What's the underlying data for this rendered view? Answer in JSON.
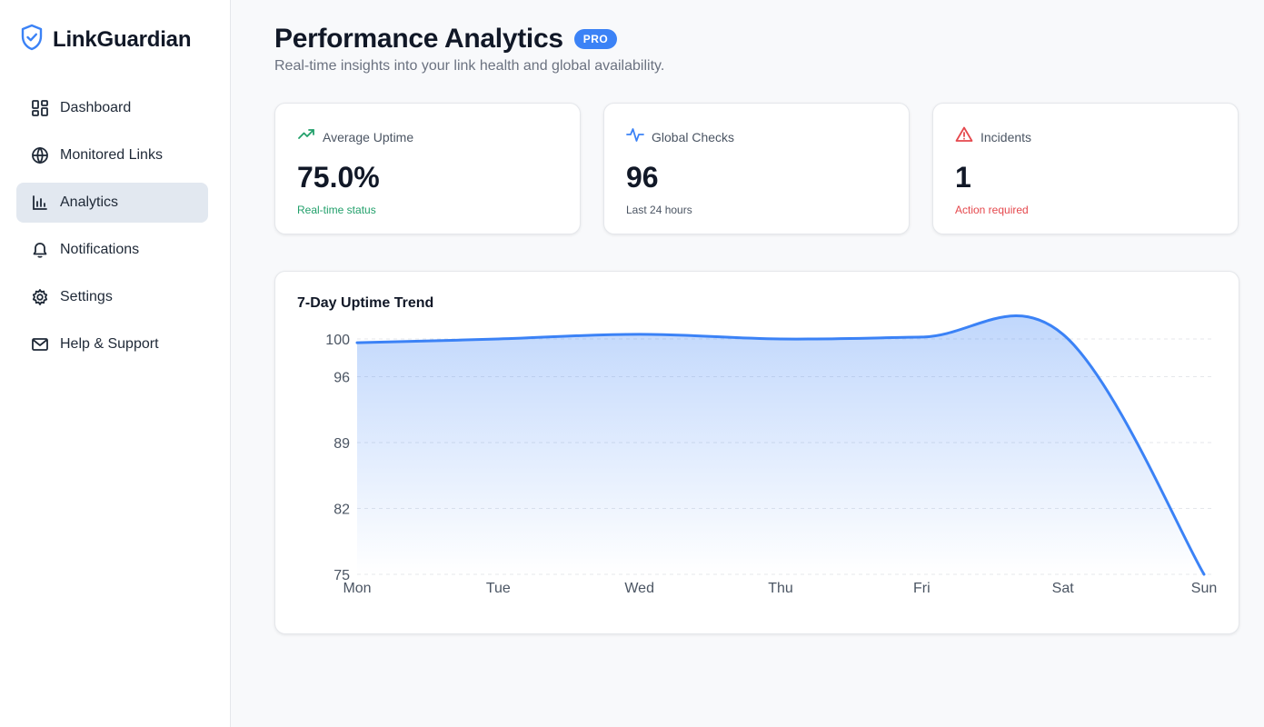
{
  "brand": {
    "name": "LinkGuardian",
    "accent": "#3b82f6"
  },
  "sidebar": {
    "items": [
      {
        "label": "Dashboard",
        "icon": "dashboard-icon",
        "active": false
      },
      {
        "label": "Monitored Links",
        "icon": "globe-icon",
        "active": false
      },
      {
        "label": "Analytics",
        "icon": "bar-chart-icon",
        "active": true
      },
      {
        "label": "Notifications",
        "icon": "bell-icon",
        "active": false
      },
      {
        "label": "Settings",
        "icon": "gear-icon",
        "active": false
      },
      {
        "label": "Help & Support",
        "icon": "mail-icon",
        "active": false
      }
    ]
  },
  "header": {
    "title": "Performance Analytics",
    "badge": "PRO",
    "subtitle": "Real-time insights into your link health and global availability."
  },
  "stats": [
    {
      "label": "Average Uptime",
      "value": "75.0%",
      "note": "Real-time status",
      "icon": "trending-up-icon",
      "color": "#22a06b"
    },
    {
      "label": "Global Checks",
      "value": "96",
      "note": "Last 24 hours",
      "icon": "activity-icon",
      "color": "#3b82f6"
    },
    {
      "label": "Incidents",
      "value": "1",
      "note": "Action required",
      "icon": "alert-triangle-icon",
      "color": "#e5484d"
    }
  ],
  "chart": {
    "title": "7-Day Uptime Trend"
  },
  "chart_data": {
    "type": "area",
    "title": "7-Day Uptime Trend",
    "categories": [
      "Mon",
      "Tue",
      "Wed",
      "Thu",
      "Fri",
      "Sat",
      "Sun"
    ],
    "values": [
      99.6,
      100,
      100.5,
      100,
      100.2,
      100.5,
      75
    ],
    "yticks": [
      75,
      82,
      89,
      96,
      100
    ],
    "ylim": [
      75,
      100
    ],
    "grid": true,
    "color": "#3b82f6"
  }
}
